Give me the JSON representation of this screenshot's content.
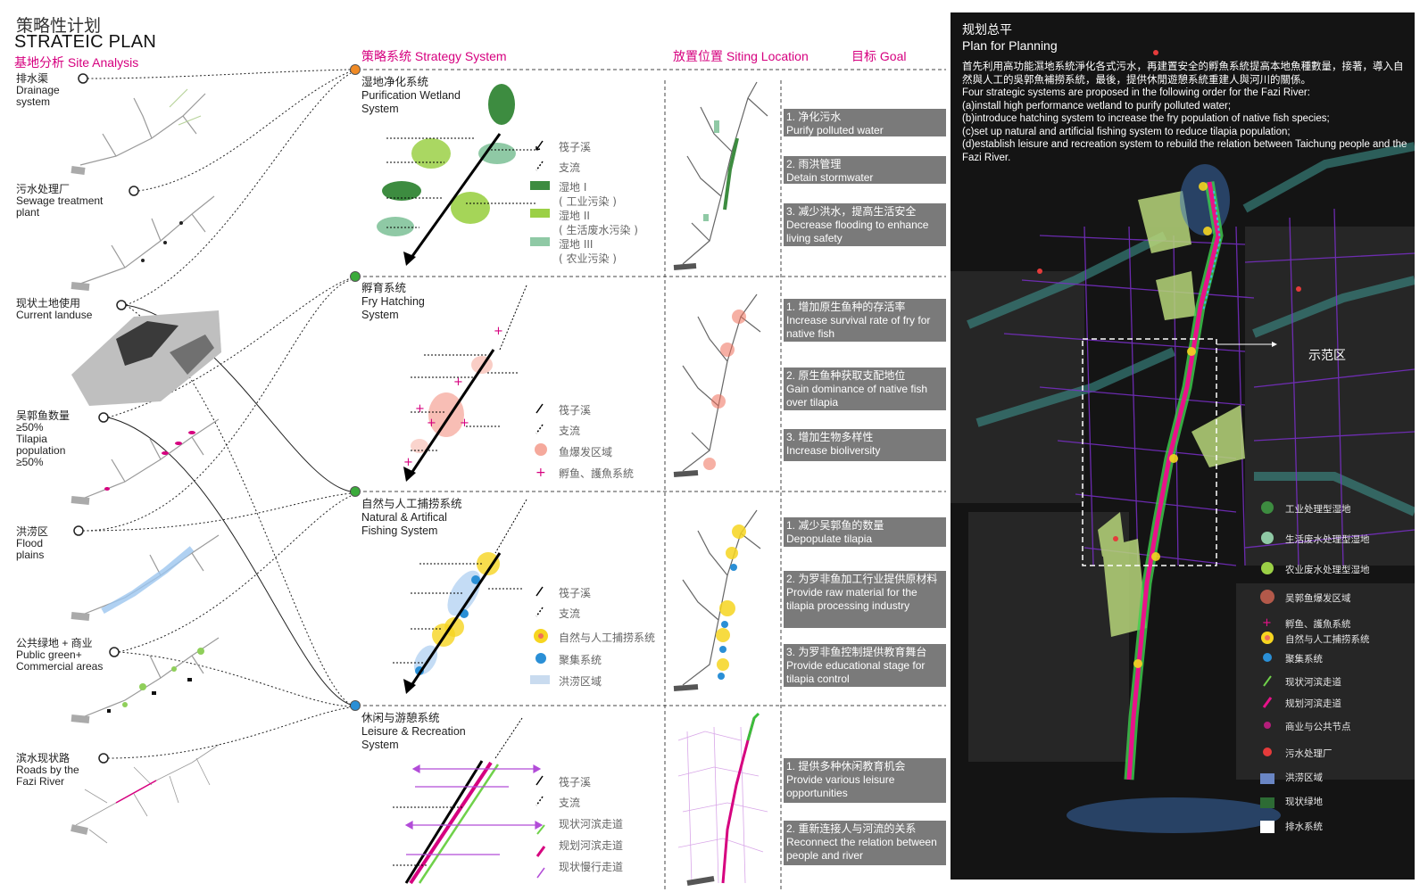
{
  "header": {
    "title_cn": "策略性计划",
    "title_en": "STRATEIC PLAN",
    "subtitle": "基地分析 Site Analysis"
  },
  "columns": {
    "strategy": "策略系统 Strategy System",
    "siting": "放置位置 Siting Location",
    "goal": "目标 Goal"
  },
  "site_analysis": [
    {
      "cn": "排水渠",
      "en": "Drainage system"
    },
    {
      "cn": "污水处理厂",
      "en": "Sewage treatment plant"
    },
    {
      "cn": "现状土地使用",
      "en": "Current landuse"
    },
    {
      "cn": "吴郭鱼数量 ≥50%",
      "en": "Tilapia population ≥50%"
    },
    {
      "cn": "洪涝区",
      "en": "Flood plains"
    },
    {
      "cn": "公共绿地 + 商业",
      "en": "Public green+ Commercial areas"
    },
    {
      "cn": "滨水现状路",
      "en": "Roads by the Fazi River"
    }
  ],
  "systems": [
    {
      "cn": "湿地净化系统",
      "en": "Purification Wetland System",
      "legend": [
        "筏子溪",
        "支流",
        "湿地 I",
        "( 工业污染 )",
        "湿地 II",
        "( 生活废水污染 )",
        "湿地 III",
        "( 农业污染 )"
      ],
      "goals": [
        {
          "cn": "1. 净化污水",
          "en": "Purify polluted water"
        },
        {
          "cn": "2. 雨洪管理",
          "en": "Detain stormwater"
        },
        {
          "cn": "3. 减少洪水，提高生活安全",
          "en": "Decrease flooding to enhance living safety"
        }
      ]
    },
    {
      "cn": "孵育系统",
      "en": "Fry Hatching System",
      "legend": [
        "筏子溪",
        "支流",
        "鱼爆发区域",
        "孵鱼、護魚系統"
      ],
      "goals": [
        {
          "cn": "1. 增加原生鱼种的存活率",
          "en": "Increase survival rate of fry for native fish"
        },
        {
          "cn": "2. 原生鱼种获取支配地位",
          "en": "Gain dominance of native fish over tilapia"
        },
        {
          "cn": "3. 增加生物多样性",
          "en": "Increase bioliversity"
        }
      ]
    },
    {
      "cn": "自然与人工捕捞系统",
      "en": "Natural & Artifical Fishing System",
      "legend": [
        "筏子溪",
        "支流",
        "自然与人工捕捞系统",
        "聚集系统",
        "洪涝区域"
      ],
      "goals": [
        {
          "cn": "1. 减少吴郭鱼的数量",
          "en": "Depopulate tilapia"
        },
        {
          "cn": "2. 为罗非鱼加工行业提供原材料",
          "en": "Provide raw material for the tilapia processing industry"
        },
        {
          "cn": "3. 为罗非鱼控制提供教育舞台",
          "en": "Provide educational stage for tilapia control"
        }
      ]
    },
    {
      "cn": "休闲与游憩系统",
      "en": "Leisure & Recreation System",
      "legend": [
        "筏子溪",
        "支流",
        "现状河滨走道",
        "规划河滨走道",
        "现状慢行走道"
      ],
      "goals": [
        {
          "cn": "1. 提供多种休闲教育机会",
          "en": "Provide various leisure opportunities"
        },
        {
          "cn": "2. 重新连接人与河流的关系",
          "en": "Reconnect the relation between people and river"
        }
      ]
    }
  ],
  "map": {
    "title_cn": "规划总平",
    "title_en": "Plan for Planning",
    "desc_cn": "首先利用高功能濕地系統淨化各式污水，再建置安全的孵魚系統提高本地魚種數量，接著，導入自然與人工的吳郭魚補撈系統，最後，提供休閒遊憩系統重建人與河川的關係。",
    "desc_en": [
      "Four strategic systems are proposed in the following order for the Fazi River:",
      "(a)install high performance wetland to purify polluted water;",
      "(b)introduce hatching system to increase the fry population of native fish species;",
      "(c)set up natural and artificial fishing system to reduce tilapia population;",
      "(d)establish leisure and recreation system to rebuild the relation between Taichung people and the Fazi River."
    ],
    "demo_label": "示范区",
    "legend": [
      "工业处理型湿地",
      "生活废水处理型湿地",
      "农业废水处理型湿地",
      "吴郭鱼爆发区域",
      "孵鱼、護魚系統",
      "自然与人工捕捞系统",
      "聚集系统",
      "现状河滨走道",
      "规划河滨走道",
      "商业与公共节点",
      "污水处理厂",
      "洪涝区域",
      "现状绿地",
      "排水系统"
    ]
  },
  "colors": {
    "accent": "#d6007f",
    "wetland1": "#3d8c40",
    "wetland2": "#9bd046",
    "wetland3": "#8fc9a5",
    "outbreak": "#ef6f5a",
    "gathering": "#2a8fd6",
    "fishing": "#f6d520"
  }
}
